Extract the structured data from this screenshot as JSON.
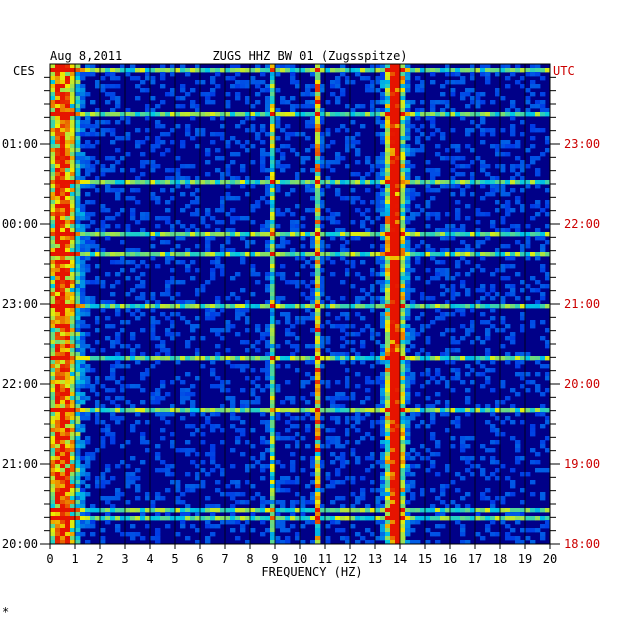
{
  "chart_data": {
    "type": "heatmap",
    "date": "Aug 8,2011",
    "title": "ZUGS HHZ BW 01 (Zugsspitze)",
    "xlabel": "FREQUENCY (HZ)",
    "x_ticks": [
      "0",
      "1",
      "2",
      "3",
      "4",
      "5",
      "6",
      "7",
      "8",
      "9",
      "10",
      "11",
      "12",
      "13",
      "14",
      "15",
      "16",
      "17",
      "18",
      "19",
      "20"
    ],
    "xlim": [
      0,
      20
    ],
    "left_axis_label": "CES",
    "right_axis_label": "UTC",
    "left_time_ticks": [
      "01:00",
      "00:00",
      "23:00",
      "22:00",
      "21:00",
      "20:00"
    ],
    "right_time_ticks": [
      "23:00",
      "22:00",
      "21:00",
      "20:00",
      "19:00",
      "18:00"
    ],
    "corner_mark": "*",
    "colors": {
      "background": "#000088",
      "utc_text": "#cc0000",
      "text": "#000000"
    },
    "features": [
      {
        "freq_hz": 0.5,
        "description": "strong broadband energy at low frequency",
        "intensity": 0.8
      },
      {
        "freq_hz": 8.9,
        "description": "narrow persistent line",
        "intensity": 0.4
      },
      {
        "freq_hz": 10.7,
        "description": "narrow persistent line",
        "intensity": 0.55
      },
      {
        "freq_hz": 13.8,
        "description": "strong persistent band",
        "intensity": 1.0
      }
    ]
  }
}
